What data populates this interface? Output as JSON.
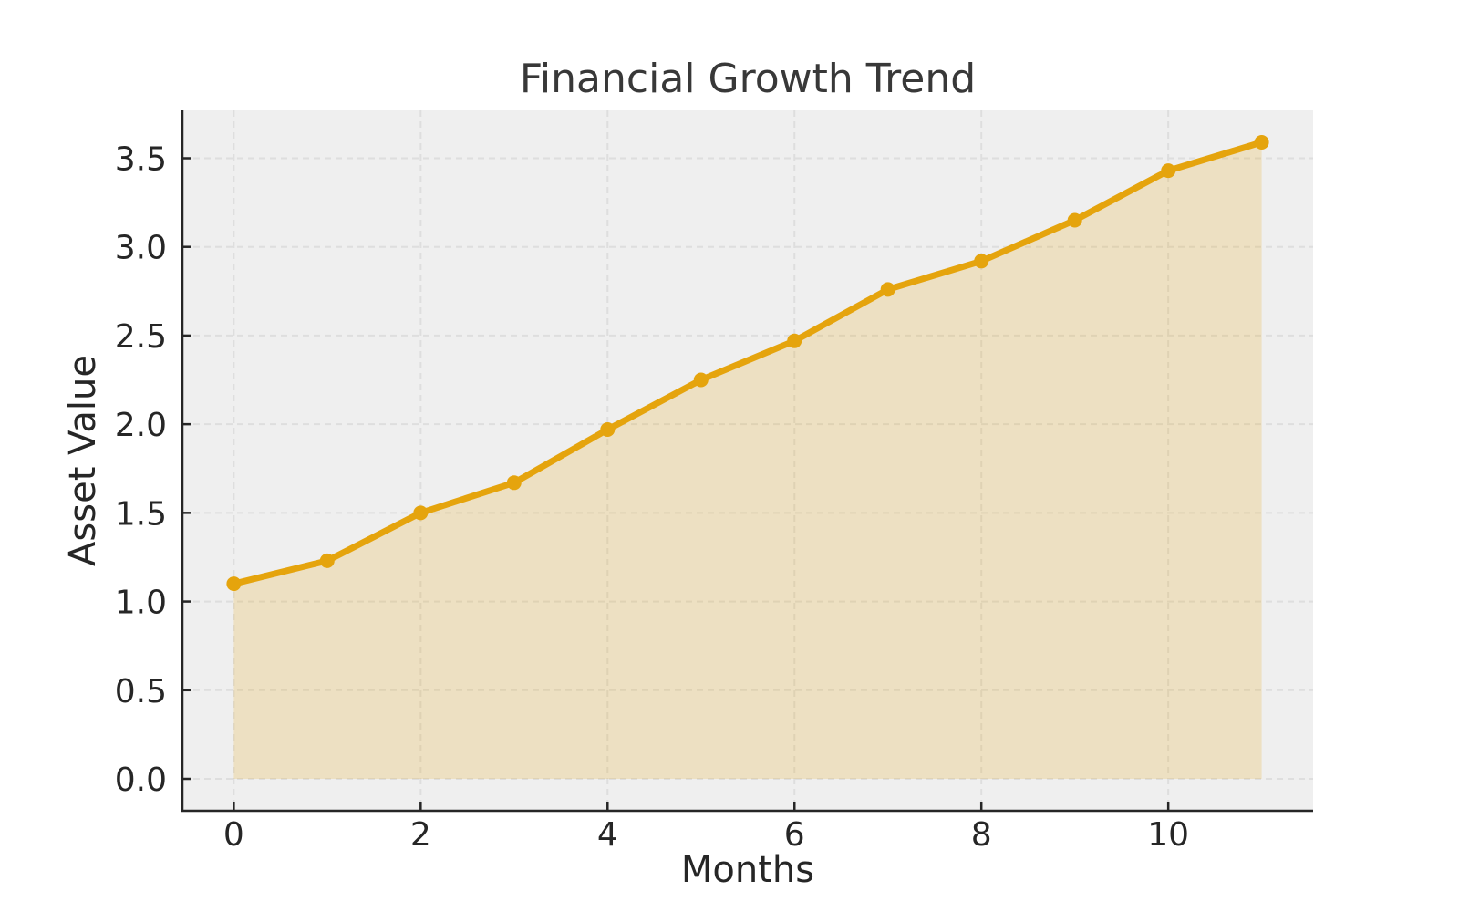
{
  "chart_data": {
    "type": "area",
    "title": "Financial Growth Trend",
    "xlabel": "Months",
    "ylabel": "Asset Value",
    "x": [
      0,
      1,
      2,
      3,
      4,
      5,
      6,
      7,
      8,
      9,
      10,
      11
    ],
    "series": [
      {
        "name": "Asset Value",
        "values": [
          1.1,
          1.23,
          1.5,
          1.67,
          1.97,
          2.25,
          2.47,
          2.76,
          2.92,
          3.15,
          3.43,
          3.59
        ]
      }
    ],
    "x_ticks": [
      0,
      2,
      4,
      6,
      8,
      10
    ],
    "y_ticks": [
      0.0,
      0.5,
      1.0,
      1.5,
      2.0,
      2.5,
      3.0,
      3.5
    ],
    "xlim": [
      -0.55,
      11.55
    ],
    "ylim": [
      -0.18,
      3.77
    ],
    "grid": true,
    "grid_style": "dashed",
    "legend_position": "none",
    "fill_baseline": 0,
    "colors": {
      "line": "#E5A40D",
      "fill": "rgba(229,164,13,0.2)",
      "plot_background": "#EFEFEF",
      "figure_background": "#FFFFFF",
      "gridline": "#DEDEDE",
      "spine": "#262626",
      "text": "#262626",
      "title_text": "#383838"
    }
  }
}
